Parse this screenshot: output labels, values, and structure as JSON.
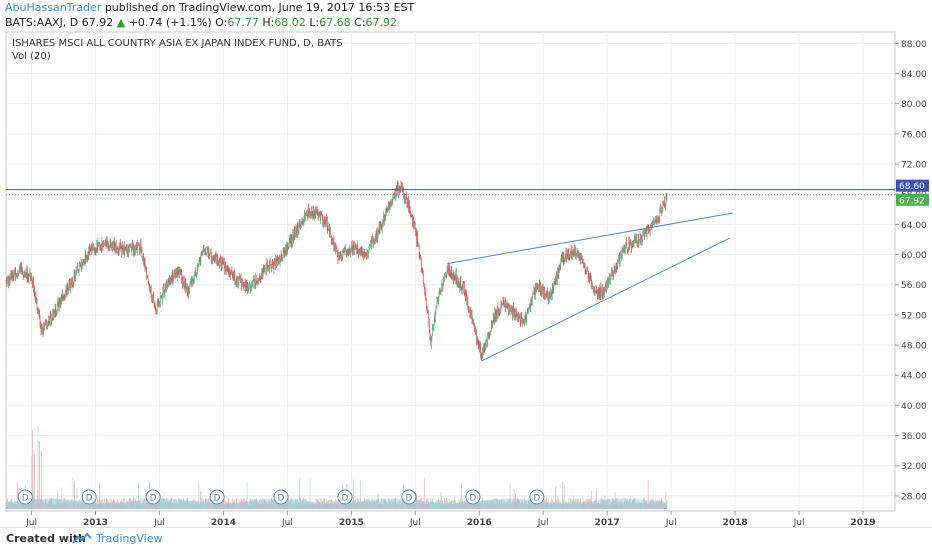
{
  "header": {
    "author": "AbuHassanTrader",
    "published_text": "published on TradingView.com, June 19, 2017 16:53 EST",
    "symbol": "BATS:AAXJ, D",
    "last_price": "67.92",
    "change": "+0.74 (+1.1%)",
    "open_label": "O:",
    "open": "67.77",
    "high_label": "H:",
    "high": "68.02",
    "low_label": "L:",
    "low": "67.68",
    "close_label": "C:",
    "close": "67.92"
  },
  "chart_data": {
    "type": "candlestick",
    "title": "ISHARES MSCI ALL COUNTRY ASIA EX JAPAN INDEX FUND, D, BATS",
    "volume_label": "Vol (20)",
    "x_tick_labels": [
      "Jul",
      "2013",
      "Jul",
      "2014",
      "Jul",
      "2015",
      "Jul",
      "2016",
      "Jul",
      "2017",
      "Jul",
      "2018",
      "Jul",
      "2019"
    ],
    "y_tick_labels": [
      "28.00",
      "32.00",
      "36.00",
      "40.00",
      "44.00",
      "48.00",
      "52.00",
      "56.00",
      "60.00",
      "64.00",
      "68.00",
      "72.00",
      "76.00",
      "80.00",
      "84.00",
      "88.00"
    ],
    "ylim": [
      26,
      89.5
    ],
    "xlim": [
      2012.3,
      2019.25
    ],
    "grid": true,
    "price_labels": [
      {
        "value": 68.6,
        "text": "68.60",
        "color": "#3f51b5"
      },
      {
        "value": 67.92,
        "text": "67.92",
        "color": "#4caf50"
      }
    ],
    "price_path": [
      [
        2012.3,
        56.5
      ],
      [
        2012.4,
        58.0
      ],
      [
        2012.5,
        57.0
      ],
      [
        2012.58,
        49.8
      ],
      [
        2012.7,
        53.0
      ],
      [
        2012.85,
        57.5
      ],
      [
        2012.95,
        60.5
      ],
      [
        2013.08,
        61.5
      ],
      [
        2013.25,
        60.5
      ],
      [
        2013.35,
        61.0
      ],
      [
        2013.47,
        52.5
      ],
      [
        2013.55,
        56.0
      ],
      [
        2013.65,
        58.0
      ],
      [
        2013.72,
        55.0
      ],
      [
        2013.85,
        60.5
      ],
      [
        2013.95,
        59.5
      ],
      [
        2014.08,
        57.0
      ],
      [
        2014.2,
        55.5
      ],
      [
        2014.32,
        58.0
      ],
      [
        2014.45,
        59.5
      ],
      [
        2014.55,
        62.5
      ],
      [
        2014.68,
        66.0
      ],
      [
        2014.8,
        64.5
      ],
      [
        2014.9,
        59.5
      ],
      [
        2015.0,
        61.0
      ],
      [
        2015.12,
        60.0
      ],
      [
        2015.22,
        63.5
      ],
      [
        2015.32,
        67.5
      ],
      [
        2015.38,
        69.0
      ],
      [
        2015.45,
        66.5
      ],
      [
        2015.52,
        61.5
      ],
      [
        2015.58,
        54.5
      ],
      [
        2015.62,
        48.5
      ],
      [
        2015.68,
        54.5
      ],
      [
        2015.75,
        58.0
      ],
      [
        2015.88,
        55.5
      ],
      [
        2015.95,
        51.0
      ],
      [
        2016.02,
        46.5
      ],
      [
        2016.12,
        52.0
      ],
      [
        2016.2,
        53.5
      ],
      [
        2016.35,
        51.0
      ],
      [
        2016.45,
        56.0
      ],
      [
        2016.55,
        54.0
      ],
      [
        2016.65,
        59.5
      ],
      [
        2016.75,
        60.5
      ],
      [
        2016.82,
        58.5
      ],
      [
        2016.9,
        55.0
      ],
      [
        2016.97,
        55.0
      ],
      [
        2017.05,
        58.0
      ],
      [
        2017.15,
        61.0
      ],
      [
        2017.25,
        62.0
      ],
      [
        2017.32,
        63.0
      ],
      [
        2017.4,
        65.0
      ],
      [
        2017.45,
        67.0
      ],
      [
        2017.47,
        67.92
      ]
    ],
    "annotations": [
      {
        "type": "horizontal_line",
        "value": 68.6
      },
      {
        "type": "trendline",
        "from": [
          2015.75,
          58.8
        ],
        "to": [
          2017.98,
          65.5
        ]
      },
      {
        "type": "trendline",
        "from": [
          2016.02,
          45.9
        ],
        "to": [
          2017.96,
          62.2
        ]
      }
    ],
    "dividend_markers": {
      "label": "D",
      "x": [
        2012.45,
        2012.95,
        2013.45,
        2013.95,
        2014.45,
        2014.95,
        2015.45,
        2015.95,
        2016.45
      ]
    }
  },
  "footer": {
    "created_label": "Created with",
    "brand": "TradingView"
  }
}
